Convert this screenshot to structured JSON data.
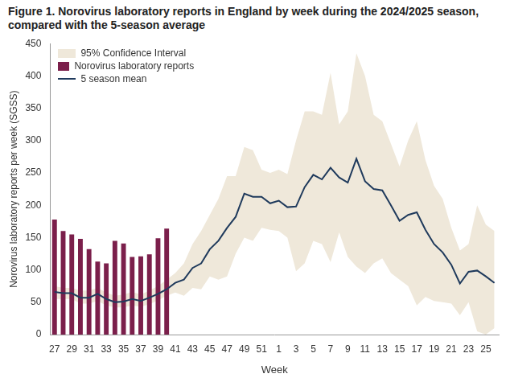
{
  "chart_data": {
    "type": "bar",
    "title": "Figure 1. Norovirus laboratory reports in England by week during the 2024/2025 season, compared with the 5-season average",
    "x_label": "Week",
    "y_label": "Norovirus laboratory reports per week (SGSS)",
    "categories": [
      "27",
      null,
      "29",
      null,
      "31",
      null,
      "33",
      null,
      "35",
      null,
      "37",
      null,
      "39",
      null,
      "41",
      null,
      "43",
      null,
      "45",
      null,
      "47",
      null,
      "49",
      null,
      "51",
      null,
      "1",
      null,
      "3",
      null,
      "5",
      null,
      "7",
      null,
      "9",
      null,
      "11",
      null,
      "13",
      null,
      "15",
      null,
      "17",
      null,
      "19",
      null,
      "21",
      null,
      "23",
      null,
      "25",
      null
    ],
    "series": [
      {
        "name": "95% Confidence Interval",
        "type": "area",
        "color": "#efe8da",
        "upper": [
          75,
          72,
          72,
          68,
          68,
          72,
          65,
          60,
          62,
          66,
          62,
          68,
          75,
          85,
          95,
          110,
          140,
          160,
          185,
          210,
          245,
          245,
          290,
          285,
          255,
          250,
          255,
          248,
          300,
          345,
          345,
          340,
          405,
          325,
          345,
          435,
          400,
          340,
          330,
          295,
          260,
          300,
          330,
          270,
          230,
          210,
          165,
          130,
          140,
          200,
          170,
          160
        ],
        "lower": [
          55,
          55,
          55,
          48,
          48,
          52,
          45,
          42,
          42,
          45,
          43,
          47,
          53,
          60,
          65,
          60,
          72,
          70,
          90,
          85,
          90,
          125,
          150,
          145,
          165,
          162,
          160,
          150,
          98,
          110,
          145,
          140,
          112,
          158,
          120,
          105,
          95,
          110,
          118,
          95,
          85,
          75,
          45,
          58,
          52,
          50,
          48,
          30,
          50,
          5,
          0,
          10
        ]
      },
      {
        "name": "Norovirus laboratory reports",
        "type": "bar",
        "color": "#7b1f4b",
        "values": [
          178,
          160,
          155,
          148,
          132,
          113,
          110,
          145,
          141,
          120,
          121,
          124,
          149,
          164,
          null,
          null,
          null,
          null,
          null,
          null,
          null,
          null,
          null,
          null,
          null,
          null,
          null,
          null,
          null,
          null,
          null,
          null,
          null,
          null,
          null,
          null,
          null,
          null,
          null,
          null,
          null,
          null,
          null,
          null,
          null,
          null,
          null,
          null,
          null,
          null,
          null,
          null
        ]
      },
      {
        "name": "5 season mean",
        "type": "line",
        "color": "#1f3a5c",
        "values": [
          66,
          64,
          64,
          57,
          57,
          63,
          55,
          50,
          51,
          55,
          52,
          57,
          63,
          70,
          80,
          85,
          103,
          110,
          132,
          145,
          165,
          182,
          218,
          213,
          213,
          203,
          207,
          197,
          198,
          228,
          247,
          240,
          258,
          243,
          235,
          272,
          237,
          225,
          223,
          200,
          176,
          185,
          189,
          162,
          140,
          127,
          108,
          79,
          97,
          99,
          90,
          80
        ]
      }
    ],
    "ylim": [
      0,
      450
    ],
    "yticks": [
      0,
      50,
      100,
      150,
      200,
      250,
      300,
      350,
      400,
      450
    ],
    "grid": false,
    "legend": "top-left"
  }
}
